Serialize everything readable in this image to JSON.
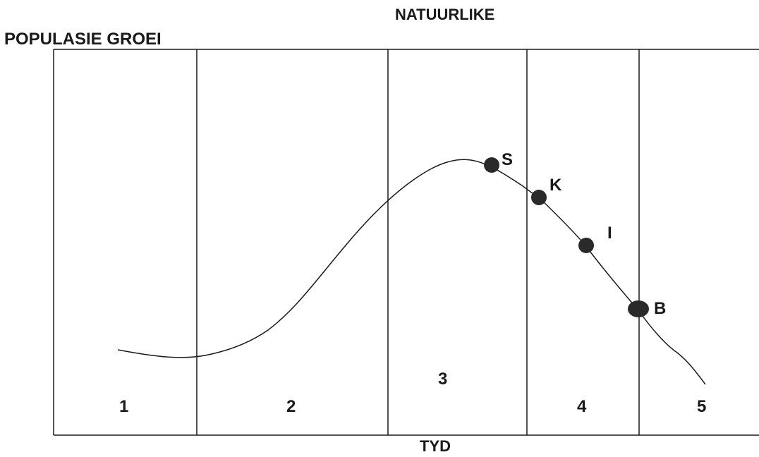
{
  "title_top": "NATUURLIKE",
  "title_left": "POPULASIE GROEI",
  "xlabel": "TYD",
  "phases": [
    "1",
    "2",
    "3",
    "4",
    "5"
  ],
  "points": [
    {
      "label": "S"
    },
    {
      "label": "K"
    },
    {
      "label": "I"
    },
    {
      "label": "B"
    }
  ],
  "colors": {
    "line": "#1a1a1a",
    "point": "#2a2a2a"
  }
}
